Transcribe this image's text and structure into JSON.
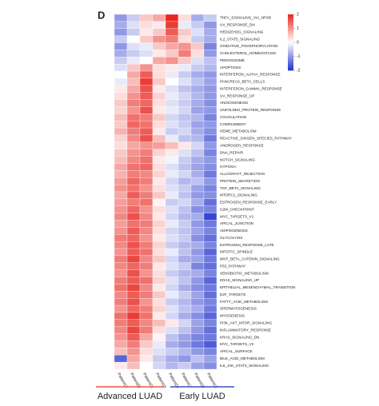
{
  "panel": "D",
  "chart_data": {
    "type": "heatmap",
    "columns": [
      "Patient12",
      "Patient25",
      "Patient23",
      "Patient18",
      "Patient24",
      "Patient17",
      "Patient16",
      "Patient13"
    ],
    "rows": [
      "TNFA_SIGNALING_VIA_NFKB",
      "UV_RESPONSE_DN",
      "HEDGEHOG_SIGNALING",
      "IL2_STAT5_SIGNALING",
      "OXIDATIVE_PHOSPHORYLATION",
      "CHOLESTEROL_HOMEOSTASIS",
      "PEROXISOME",
      "APOPTOSIS",
      "INTERFERON_ALPHA_RESPONSE",
      "PANCREAS_BETA_CELLS",
      "INTERFERON_GAMMA_RESPONSE",
      "UV_RESPONSE_UP",
      "ANGIOGENESIS",
      "UNFOLDED_PROTEIN_RESPONSE",
      "COAGULATION",
      "COMPLEMENT",
      "HEME_METABOLISM",
      "REACTIVE_OXIGEN_SPECIES_PATHWAY",
      "ANDROGEN_RESPONSE",
      "DNA_REPAIR",
      "NOTCH_SIGNALING",
      "HYPOXIA",
      "ALLOGRAFT_REJECTION",
      "PROTEIN_SECRETION",
      "TGF_BETA_SIGNALING",
      "MTORC1_SIGNALING",
      "ESTROGEN_RESPONSE_EARLY",
      "G2M_CHECKPOINT",
      "MYC_TARGETS_V1",
      "APICAL_JUNCTION",
      "ADIPOGENESIS",
      "GLYCOLYSIS",
      "ESTROGEN_RESPONSE_LATE",
      "MITOTIC_SPINDLE",
      "WNT_BETA_CATENIN_SIGNALING",
      "P53_PATHWAY",
      "XENOBIOTIC_METABOLISM",
      "KRAS_SIGNALING_UP",
      "EPITHELIAL_MESENCHYMAL_TRANSITION",
      "E2F_TARGETS",
      "FATTY_ACID_METABOLISM",
      "SPERMATOGENESIS",
      "MYOGENESIS",
      "PI3K_AKT_MTOR_SIGNALING",
      "INFLAMMATORY_RESPONSE",
      "KRAS_SIGNALING_DN",
      "MYC_TARGETS_V2",
      "APICAL_SURFACE",
      "BILE_ACID_METABOLISM",
      "IL6_JAK_STAT3_SIGNALING"
    ],
    "values": [
      [
        -1,
        -0.5,
        0.5,
        0.8,
        2,
        0.3,
        -0.8,
        -0.5
      ],
      [
        -0.8,
        -0.3,
        0.3,
        0.2,
        1.8,
        -0.2,
        -0.5,
        -1
      ],
      [
        -1,
        -0.5,
        0.2,
        0.5,
        1.5,
        0.5,
        -0.3,
        -0.8
      ],
      [
        -0.5,
        0,
        0.5,
        1,
        1.2,
        0.3,
        -0.5,
        -0.8
      ],
      [
        -1,
        -0.3,
        -0.2,
        0.5,
        0.8,
        1,
        0.5,
        -1.2
      ],
      [
        -0.8,
        -0.5,
        -0.3,
        0.2,
        0.5,
        1.2,
        0.3,
        -1
      ],
      [
        -0.5,
        -0.2,
        0,
        0.8,
        1,
        0.5,
        -0.3,
        -0.6
      ],
      [
        -0.3,
        0.5,
        1,
        0.3,
        0.2,
        -0.2,
        -0.5,
        -0.7
      ],
      [
        0,
        0.8,
        1.5,
        0.3,
        -0.2,
        -0.5,
        -0.8,
        -1
      ],
      [
        -0.2,
        0.6,
        1.8,
        0.5,
        0,
        -0.3,
        -0.6,
        -0.9
      ],
      [
        0.2,
        0.8,
        1.6,
        0.2,
        -0.3,
        -0.6,
        -0.8,
        -1
      ],
      [
        0.3,
        1,
        1.5,
        0.4,
        -0.2,
        -0.4,
        -0.7,
        -1
      ],
      [
        0.5,
        1.2,
        1.4,
        0.3,
        -0.3,
        -0.5,
        -0.8,
        -1.1
      ],
      [
        0.4,
        1,
        1.6,
        0.2,
        -0.2,
        -0.4,
        -0.9,
        -1
      ],
      [
        0.6,
        1.3,
        1.2,
        0.5,
        -0.4,
        -0.6,
        -0.7,
        -1.2
      ],
      [
        0.5,
        1.4,
        1.3,
        0.3,
        -0.3,
        -0.5,
        -0.9,
        -1
      ],
      [
        0.7,
        1.2,
        1.5,
        0.2,
        -0.5,
        -0.4,
        -0.8,
        -1.1
      ],
      [
        0.4,
        1.1,
        1.6,
        0.6,
        -0.2,
        -0.6,
        -0.7,
        -1.3
      ],
      [
        0.3,
        0.8,
        1,
        0.9,
        0.6,
        0.2,
        -0.4,
        -1
      ],
      [
        0.5,
        1,
        1.2,
        0.4,
        0.2,
        -0.3,
        -0.6,
        -1.2
      ],
      [
        0.6,
        1.1,
        1.3,
        0.2,
        -0.1,
        -0.5,
        -0.8,
        -1
      ],
      [
        0.8,
        1.3,
        1.4,
        0.3,
        -0.3,
        -0.6,
        -0.9,
        -1.1
      ],
      [
        0.7,
        1.2,
        1.1,
        0.4,
        -0.2,
        -0.4,
        -0.8,
        -1.3
      ],
      [
        0.9,
        1.4,
        1.2,
        0.2,
        -0.4,
        -0.7,
        -0.6,
        -1
      ],
      [
        1,
        1.3,
        1,
        0.3,
        -0.3,
        -0.5,
        -0.9,
        -1.2
      ],
      [
        0.8,
        1.5,
        1.2,
        0.5,
        -0.2,
        -0.6,
        -1,
        -1.1
      ],
      [
        0.9,
        1.2,
        1.3,
        0.1,
        -0.5,
        -0.4,
        -0.8,
        -1.4
      ],
      [
        1,
        1.4,
        1,
        0.3,
        -0.3,
        -0.6,
        -1.1,
        -1.2
      ],
      [
        1.1,
        1.6,
        1.1,
        0.2,
        -0.4,
        -0.7,
        -0.8,
        -1.8
      ],
      [
        0.9,
        1.3,
        1.2,
        0.4,
        -0.2,
        -0.5,
        -1,
        -1.3
      ],
      [
        1,
        1.5,
        1.1,
        0.3,
        -0.4,
        -0.6,
        -0.9,
        -1.2
      ],
      [
        1.2,
        1.4,
        1,
        0.2,
        -0.3,
        -0.5,
        -1.1,
        -1.4
      ],
      [
        1.1,
        1.6,
        1.2,
        0.4,
        -0.5,
        -0.7,
        -0.8,
        -1.2
      ],
      [
        1,
        1.5,
        1.3,
        0.3,
        -0.2,
        -0.6,
        -1,
        -1.5
      ],
      [
        1.2,
        1.7,
        1.1,
        0.5,
        -0.4,
        -0.8,
        -0.9,
        -1.3
      ],
      [
        1.1,
        1.4,
        1.2,
        0.2,
        -0.3,
        -0.5,
        -1.2,
        -1.4
      ],
      [
        1,
        1.6,
        1,
        0.3,
        -0.5,
        -0.7,
        -0.8,
        -1.2
      ],
      [
        1.2,
        1.5,
        1.3,
        0.4,
        -0.3,
        -0.6,
        -1,
        -1.5
      ],
      [
        1.3,
        1.7,
        1.1,
        0.2,
        -0.4,
        -0.8,
        -1.1,
        -1.3
      ],
      [
        1.1,
        1.5,
        1.2,
        0.5,
        -0.2,
        -0.5,
        -0.9,
        -1.4
      ],
      [
        1.2,
        1.6,
        1,
        0.3,
        -0.5,
        -0.7,
        -1,
        -1.2
      ],
      [
        1,
        1.4,
        1.2,
        0.4,
        -0.3,
        -0.6,
        -0.8,
        -1.3
      ],
      [
        1.3,
        1.8,
        1.3,
        0.2,
        -0.4,
        -0.8,
        -1.1,
        -1.5
      ],
      [
        1.2,
        1.5,
        1.1,
        0.6,
        0.2,
        -0.4,
        -0.9,
        -1.2
      ],
      [
        1.1,
        1.7,
        1.2,
        0.3,
        -0.3,
        -0.6,
        -1,
        -1.4
      ],
      [
        1,
        1.5,
        0.8,
        0.1,
        -0.6,
        -0.9,
        -1.2,
        -1.3
      ],
      [
        0.8,
        1.2,
        0.5,
        -0.2,
        -0.8,
        -1,
        -1.3,
        -1.6
      ],
      [
        0.6,
        1,
        0.3,
        -0.3,
        -0.5,
        -0.7,
        -1,
        -1.2
      ],
      [
        -1.5,
        0.8,
        0.2,
        -0.5,
        -0.8,
        -1,
        -0.6,
        -0.9
      ],
      [
        0.2,
        0.6,
        0,
        -0.4,
        -0.7,
        -0.5,
        -0.9,
        -1.1
      ]
    ],
    "clim": [
      -2,
      2
    ],
    "colorbar_ticks": [
      2,
      1,
      0,
      -1,
      -2
    ],
    "colors": {
      "low": "#2233cc",
      "mid": "#ffffff",
      "high": "#e8261f"
    },
    "groups": [
      {
        "name": "Advanced LUAD",
        "color": "#e8554e"
      },
      {
        "name": "Early LUAD",
        "color": "#3a4fc4"
      }
    ]
  }
}
